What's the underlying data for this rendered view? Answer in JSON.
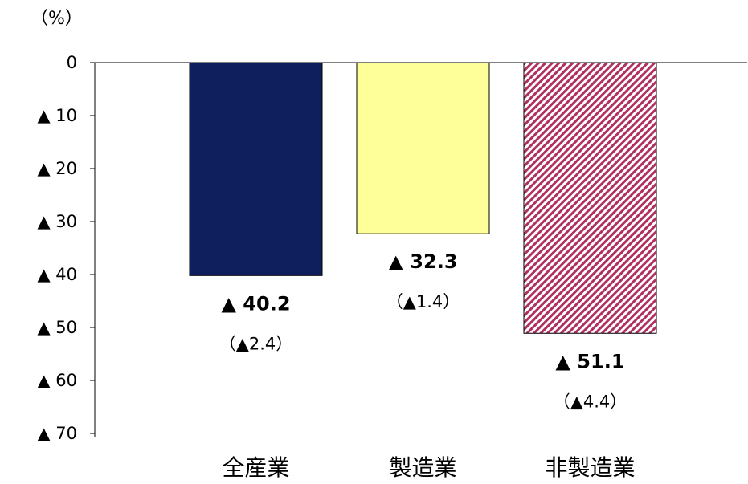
{
  "chart_data": {
    "type": "bar",
    "unit_label": "（%）",
    "categories": [
      "全産業",
      "製造業",
      "非製造業"
    ],
    "values": [
      -40.2,
      -32.3,
      -51.1
    ],
    "value_labels": [
      "▲ 40.2",
      "▲ 32.3",
      "▲ 51.1"
    ],
    "change_labels": [
      "（▲2.4）",
      "（▲1.4）",
      "（▲4.4）"
    ],
    "bar_colors": [
      "#0f1f5e",
      "#ffff99",
      "#b03060"
    ],
    "bar_patterns": [
      "solid",
      "solid",
      "diagonal-hatch"
    ],
    "y_ticks": [
      0,
      -10,
      -20,
      -30,
      -40,
      -50,
      -60,
      -70
    ],
    "y_tick_labels": [
      "0",
      "▲ 10",
      "▲ 20",
      "▲ 30",
      "▲ 40",
      "▲ 50",
      "▲ 60",
      "▲ 70"
    ],
    "ylim": [
      -70,
      0
    ],
    "grid": false,
    "legend": "none"
  }
}
